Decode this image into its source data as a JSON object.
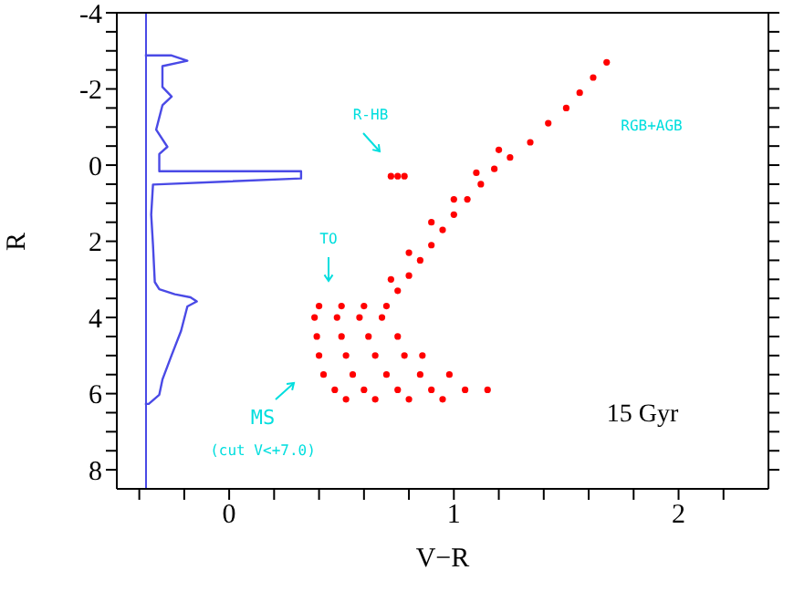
{
  "chart_data": {
    "type": "scatter",
    "xlabel": "V−R",
    "ylabel": "R",
    "xlim": [
      -0.5,
      2.4
    ],
    "ylim": [
      8.5,
      -4
    ],
    "xticks": [
      {
        "value": -0.4,
        "label": null
      },
      {
        "value": -0.2,
        "label": null
      },
      0,
      {
        "value": 0.2,
        "label": null
      },
      {
        "value": 0.4,
        "label": null
      },
      {
        "value": 0.6,
        "label": null
      },
      {
        "value": 0.8,
        "label": null
      },
      1,
      {
        "value": 1.2,
        "label": null
      },
      {
        "value": 1.4,
        "label": null
      },
      {
        "value": 1.6,
        "label": null
      },
      {
        "value": 1.8,
        "label": null
      },
      2,
      {
        "value": 2.2,
        "label": null
      }
    ],
    "yticks": [
      -4,
      {
        "value": -3.5,
        "label": null
      },
      {
        "value": -3,
        "label": null
      },
      {
        "value": -2.5,
        "label": null
      },
      -2,
      {
        "value": -1.5,
        "label": null
      },
      {
        "value": -1,
        "label": null
      },
      {
        "value": -0.5,
        "label": null
      },
      0,
      {
        "value": 0.5,
        "label": null
      },
      {
        "value": 1,
        "label": null
      },
      {
        "value": 1.5,
        "label": null
      },
      2,
      {
        "value": 2.5,
        "label": null
      },
      {
        "value": 3,
        "label": null
      },
      {
        "value": 3.5,
        "label": null
      },
      4,
      {
        "value": 4.5,
        "label": null
      },
      {
        "value": 5,
        "label": null
      },
      {
        "value": 5.5,
        "label": null
      },
      6,
      {
        "value": 6.5,
        "label": null
      },
      {
        "value": 7,
        "label": null
      },
      {
        "value": 7.5,
        "label": null
      },
      8
    ],
    "grid": false,
    "legend": false,
    "series": [
      {
        "type": "line",
        "color": "#4a4ae6",
        "x": [
          -0.375,
          -0.256,
          -0.186,
          -0.297,
          -0.297,
          -0.256,
          -0.297,
          -0.311,
          -0.325,
          -0.275,
          -0.311,
          -0.311,
          0.32,
          0.32,
          -0.339,
          -0.347,
          -0.339,
          -0.331,
          -0.311,
          -0.242,
          -0.172,
          -0.144,
          -0.186,
          -0.214,
          -0.256,
          -0.297,
          -0.311,
          -0.358,
          -0.375
        ],
        "values": [
          -2.88,
          -2.88,
          -2.74,
          -2.6,
          -2.05,
          -1.8,
          -1.57,
          -1.25,
          -0.93,
          -0.48,
          -0.29,
          0.16,
          0.16,
          0.35,
          0.51,
          1.3,
          2.1,
          3.07,
          3.26,
          3.39,
          3.47,
          3.58,
          3.71,
          4.35,
          4.99,
          5.63,
          6.03,
          6.27,
          6.27
        ]
      },
      {
        "marker": "circle",
        "color": "#ff0000",
        "x": [
          0.4,
          0.5,
          0.6,
          0.7,
          0.38,
          0.48,
          0.58,
          0.68,
          0.39,
          0.5,
          0.62,
          0.75,
          0.4,
          0.52,
          0.65,
          0.78,
          0.86,
          0.42,
          0.55,
          0.7,
          0.85,
          0.98,
          0.47,
          0.6,
          0.75,
          0.9,
          1.05,
          1.15,
          0.52,
          0.65,
          0.8,
          0.95,
          0.75,
          0.8,
          0.85,
          0.9,
          0.95,
          1.0,
          1.06,
          1.12,
          1.18,
          1.25,
          1.34,
          1.42,
          1.5,
          1.56,
          1.62,
          1.68,
          0.72,
          0.8,
          0.9,
          1.0,
          1.1,
          1.2,
          0.72,
          0.75,
          0.78
        ],
        "values": [
          3.7,
          3.7,
          3.7,
          3.7,
          4.0,
          4.0,
          4.0,
          4.0,
          4.5,
          4.5,
          4.5,
          4.5,
          5.0,
          5.0,
          5.0,
          5.0,
          5.0,
          5.5,
          5.5,
          5.5,
          5.5,
          5.5,
          5.9,
          5.9,
          5.9,
          5.9,
          5.9,
          5.9,
          6.15,
          6.15,
          6.15,
          6.15,
          3.3,
          2.9,
          2.5,
          2.1,
          1.7,
          1.3,
          0.9,
          0.5,
          0.1,
          -0.2,
          -0.6,
          -1.1,
          -1.5,
          -1.9,
          -2.3,
          -2.7,
          3.0,
          2.3,
          1.5,
          0.9,
          0.2,
          -0.4,
          0.29,
          0.29,
          0.29
        ]
      }
    ],
    "ref_lines": [
      {
        "axis": "x",
        "value": -0.37,
        "color": "#4a4ae6"
      }
    ],
    "annotations": [
      "R-HB",
      "TO",
      "RGB+AGB",
      "MS",
      "(cut V<+7.0)",
      "15 Gyr"
    ]
  }
}
